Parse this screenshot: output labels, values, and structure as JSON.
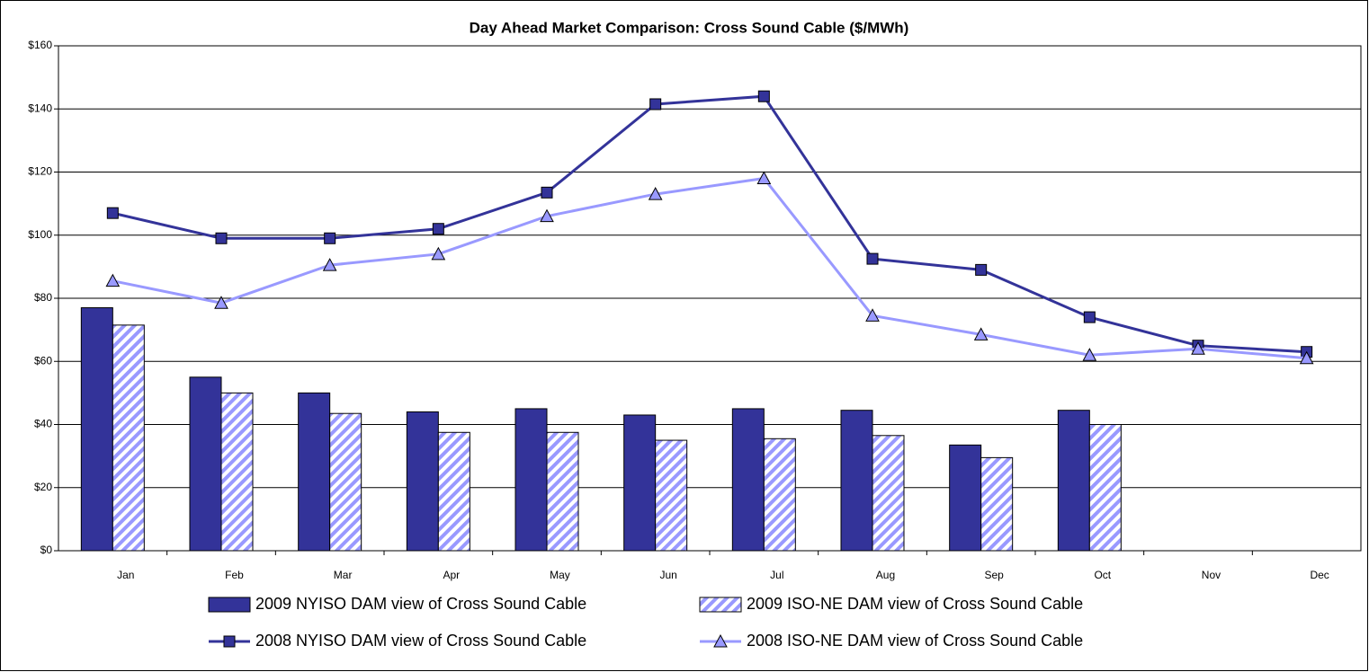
{
  "chart_data": {
    "type": "bar_line",
    "title": "Day Ahead Market Comparison: Cross Sound Cable ($/MWh)",
    "categories": [
      "Jan",
      "Feb",
      "Mar",
      "Apr",
      "May",
      "Jun",
      "Jul",
      "Aug",
      "Sep",
      "Oct",
      "Nov",
      "Dec"
    ],
    "series": [
      {
        "name": "2009 NYISO DAM view of Cross Sound Cable",
        "type": "bar",
        "color": "#333399",
        "values": [
          77,
          55,
          50,
          44,
          45,
          43,
          45,
          44.5,
          33.5,
          44.5,
          null,
          null
        ]
      },
      {
        "name": "2009 ISO-NE DAM view of Cross Sound Cable",
        "type": "bar",
        "color": "#9999ff",
        "hatch": true,
        "values": [
          71.5,
          50,
          43.5,
          37.5,
          37.5,
          35,
          35.5,
          36.5,
          29.5,
          40,
          null,
          null
        ]
      },
      {
        "name": "2008 NYISO DAM view of Cross Sound Cable",
        "type": "line",
        "color": "#333399",
        "marker": "square",
        "values": [
          107,
          99,
          99,
          102,
          113.5,
          141.5,
          144,
          92.5,
          89,
          74,
          65,
          63
        ]
      },
      {
        "name": "2008 ISO-NE DAM view of Cross Sound Cable",
        "type": "line",
        "color": "#9999ff",
        "marker": "triangle",
        "values": [
          85.5,
          78.5,
          90.5,
          94,
          106,
          113,
          118,
          74.5,
          68.5,
          62,
          64,
          61
        ]
      }
    ],
    "ylim": [
      0,
      160
    ],
    "yticks": [
      {
        "value": 0,
        "label": "$0"
      },
      {
        "value": 20,
        "label": "$20"
      },
      {
        "value": 40,
        "label": "$40"
      },
      {
        "value": 60,
        "label": "$60"
      },
      {
        "value": 80,
        "label": "$80"
      },
      {
        "value": 100,
        "label": "$100"
      },
      {
        "value": 120,
        "label": "$120"
      },
      {
        "value": 140,
        "label": "$140"
      },
      {
        "value": 160,
        "label": "$160"
      }
    ],
    "grid": true,
    "legend": "bottom"
  }
}
